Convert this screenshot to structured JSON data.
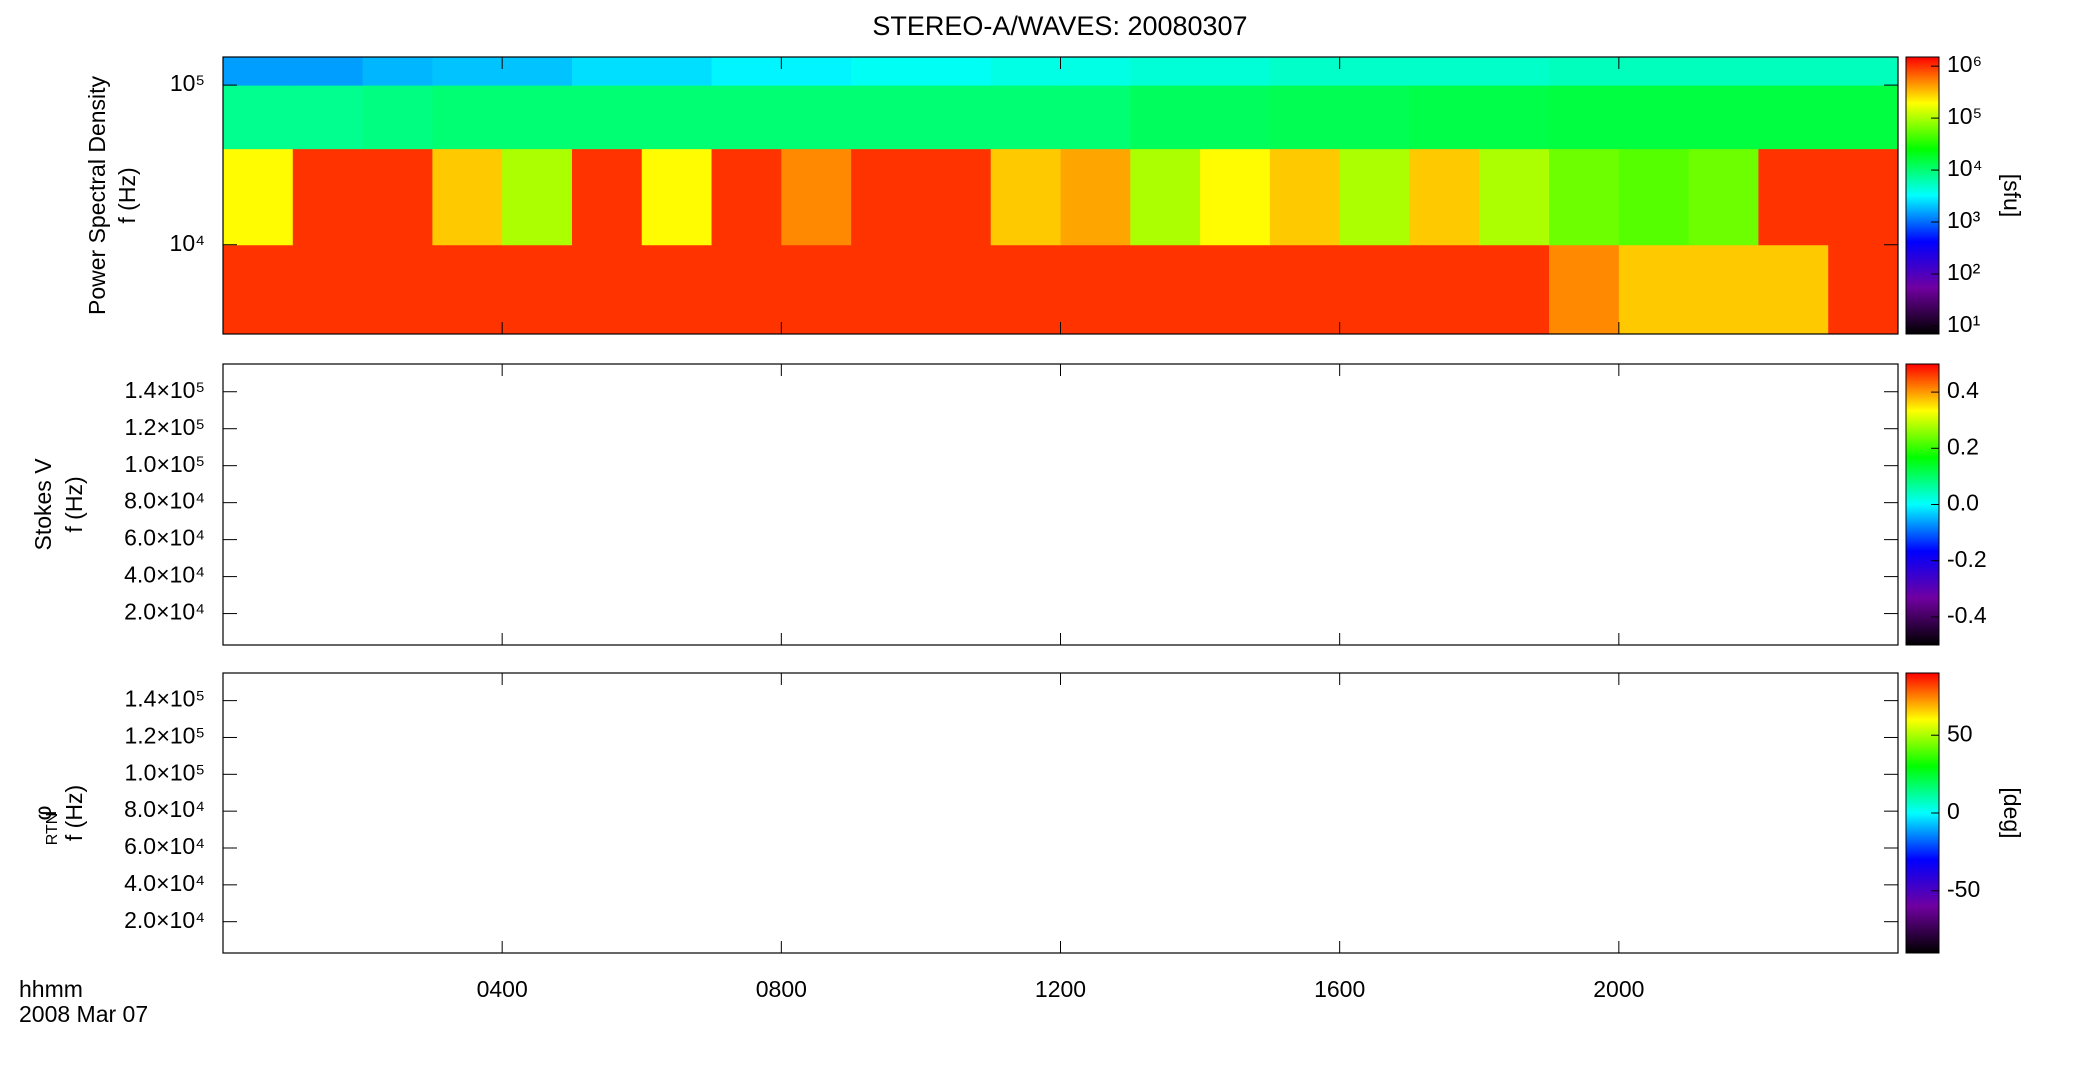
{
  "chart_data": {
    "type": "spectrogram",
    "title": "STEREO-A/WAVES: 20080307",
    "xlim": [
      0,
      24
    ],
    "xticks": [
      {
        "value": 4,
        "label": "0400"
      },
      {
        "value": 8,
        "label": "0800"
      },
      {
        "value": 12,
        "label": "1200"
      },
      {
        "value": 16,
        "label": "1600"
      },
      {
        "value": 20,
        "label": "2000"
      }
    ],
    "xlabel": [
      "hhmm",
      "2008 Mar 07"
    ],
    "colormap": [
      "#000000",
      "#7000a0",
      "#0000ff",
      "#00ffff",
      "#00ff00",
      "#ffff00",
      "#ff0000"
    ],
    "panels": [
      {
        "ylabel": [
          "Power Spectral Density",
          "f (Hz)"
        ],
        "ylog": true,
        "ylim": [
          2760,
          150000
        ],
        "yticks": [
          {
            "value": 10000,
            "label": "10⁴"
          },
          {
            "value": 100000,
            "label": "10⁵"
          }
        ],
        "colorbar": {
          "label": "[sfu]",
          "log": true,
          "lim": [
            7,
            1500000
          ],
          "ticks": [
            {
              "value": 10,
              "label": "10¹"
            },
            {
              "value": 100,
              "label": "10²"
            },
            {
              "value": 1000,
              "label": "10³"
            },
            {
              "value": 10000,
              "label": "10⁴"
            },
            {
              "value": 100000,
              "label": "10⁵"
            },
            {
              "value": 1000000,
              "label": "10⁶"
            }
          ]
        },
        "x_edges": [
          0,
          1,
          2,
          3,
          4,
          5,
          6,
          7,
          8,
          9,
          10,
          11,
          12,
          13,
          14,
          15,
          16,
          17,
          18,
          19,
          20,
          21,
          22,
          23,
          24
        ],
        "f_edges": [
          2760,
          10000,
          40000,
          100000,
          150000
        ],
        "values": [
          [
            1000000,
            1000000,
            1000000,
            1000000,
            1000000,
            1000000,
            1000000,
            1000000,
            1000000,
            1000000,
            1000000,
            1000000,
            1000000,
            1000000,
            1000000,
            1000000,
            1000000,
            1000000,
            1000000,
            500000,
            300000,
            300000,
            300000,
            1000000
          ],
          [
            200000,
            1000000,
            1000000,
            300000,
            100000,
            1000000,
            200000,
            1000000,
            500000,
            1000000,
            1000000,
            300000,
            400000,
            100000,
            200000,
            300000,
            100000,
            300000,
            100000,
            60000,
            50000,
            60000,
            1000000,
            1000000
          ],
          [
            8000,
            8000,
            9000,
            10000,
            10000,
            10000,
            10000,
            10000,
            10000,
            10000,
            10000,
            10000,
            10000,
            12000,
            12000,
            13000,
            13000,
            14000,
            14000,
            15000,
            15000,
            15000,
            15000,
            15000
          ],
          [
            1500,
            1500,
            1800,
            2000,
            2000,
            2500,
            2500,
            3000,
            3000,
            3500,
            3500,
            4000,
            4000,
            4500,
            4500,
            5000,
            5000,
            5000,
            5000,
            5500,
            5500,
            5500,
            5500,
            5500
          ]
        ]
      },
      {
        "ylabel": [
          "Stokes V",
          "f (Hz)"
        ],
        "ylog": false,
        "ylim": [
          3000,
          155000
        ],
        "yticks": [
          {
            "value": 20000,
            "label": "2.0×10⁴"
          },
          {
            "value": 40000,
            "label": "4.0×10⁴"
          },
          {
            "value": 60000,
            "label": "6.0×10⁴"
          },
          {
            "value": 80000,
            "label": "8.0×10⁴"
          },
          {
            "value": 100000,
            "label": "1.0×10⁵"
          },
          {
            "value": 120000,
            "label": "1.2×10⁵"
          },
          {
            "value": 140000,
            "label": "1.4×10⁵"
          }
        ],
        "colorbar": {
          "log": false,
          "lim": [
            -0.5,
            0.5
          ],
          "ticks": [
            -0.4,
            -0.2,
            {
              "value": 0,
              "label": "0.0"
            },
            0.2,
            0.4
          ]
        }
      },
      {
        "ylabel": [
          "φ",
          "f (Hz)"
        ],
        "ylabel_sub": "RTN",
        "ylog": false,
        "ylim": [
          3000,
          155000
        ],
        "yticks": [
          {
            "value": 20000,
            "label": "2.0×10⁴"
          },
          {
            "value": 40000,
            "label": "4.0×10⁴"
          },
          {
            "value": 60000,
            "label": "6.0×10⁴"
          },
          {
            "value": 80000,
            "label": "8.0×10⁴"
          },
          {
            "value": 100000,
            "label": "1.0×10⁵"
          },
          {
            "value": 120000,
            "label": "1.2×10⁵"
          },
          {
            "value": 140000,
            "label": "1.4×10⁵"
          }
        ],
        "colorbar": {
          "label": "[deg]",
          "log": false,
          "lim": [
            -90,
            90
          ],
          "ticks": [
            -50,
            0,
            50
          ]
        }
      }
    ]
  }
}
